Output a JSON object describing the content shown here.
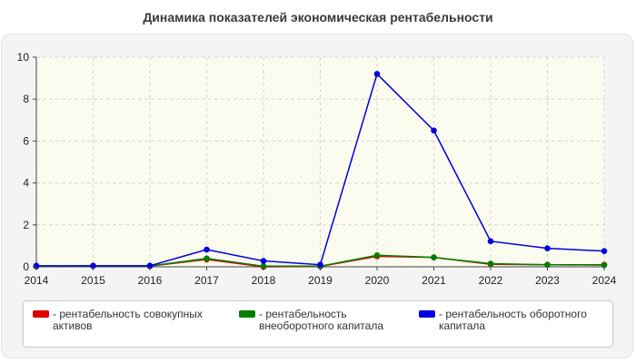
{
  "chart_data": {
    "type": "line",
    "title": "Динамика показателей экономическая рентабельности",
    "x": [
      "2014",
      "2015",
      "2016",
      "2017",
      "2018",
      "2019",
      "2020",
      "2021",
      "2022",
      "2023",
      "2024"
    ],
    "ylim": [
      0,
      10
    ],
    "yticks": [
      0,
      2,
      4,
      6,
      8,
      10
    ],
    "grid": true,
    "legend_position": "bottom",
    "series": [
      {
        "name": "рентабельность совокупных активов",
        "legend_label": "- рентабельность совокупных активов",
        "color": "#e00000",
        "values": [
          0.02,
          0.04,
          0.03,
          0.35,
          0.0,
          0.02,
          0.5,
          0.45,
          0.12,
          0.1,
          0.1
        ]
      },
      {
        "name": "рентабельность внеоборотного капитала",
        "legend_label": "- рентабельность внеоборотного капитала",
        "color": "#008000",
        "values": [
          0.02,
          0.04,
          0.04,
          0.4,
          0.03,
          0.03,
          0.55,
          0.45,
          0.15,
          0.1,
          0.08
        ]
      },
      {
        "name": "рентабельность оборотного капитала",
        "legend_label": "- рентабельность оборотного капитала",
        "color": "#0000e0",
        "values": [
          0.05,
          0.05,
          0.05,
          0.82,
          0.28,
          0.1,
          9.2,
          6.5,
          1.22,
          0.88,
          0.75
        ]
      }
    ]
  }
}
